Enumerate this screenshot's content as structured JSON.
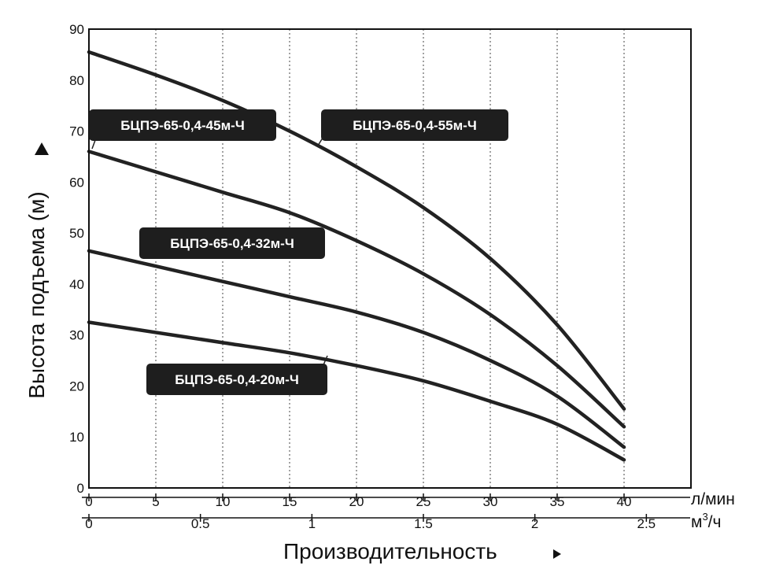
{
  "chart_data": {
    "type": "line",
    "ylabel": "Высота подъема (м)",
    "xlabel": "Производительность",
    "x_unit_primary": "л/мин",
    "x_unit_secondary_base": "м",
    "x_unit_secondary_sup": "3",
    "x_unit_secondary_tail": "/ч",
    "ylim": [
      0,
      90
    ],
    "xlim": [
      0,
      45
    ],
    "y_ticks": [
      0,
      10,
      20,
      30,
      40,
      50,
      60,
      70,
      80,
      90
    ],
    "x_ticks": [
      0,
      5,
      10,
      15,
      20,
      25,
      30,
      35,
      40
    ],
    "x2_ticks": [
      "0",
      "0.5",
      "1",
      "1.5",
      "2",
      "2.5"
    ],
    "x2_values": [
      0,
      0.5,
      1,
      1.5,
      2,
      2.5
    ],
    "grid": "vertical",
    "series": [
      {
        "name": "БЦПЭ-65-0,4-55м-Ч",
        "x": [
          0,
          5,
          10,
          15,
          20,
          25,
          30,
          35,
          40
        ],
        "y": [
          85.5,
          81,
          76,
          70,
          63,
          55,
          45,
          32,
          15.5
        ]
      },
      {
        "name": "БЦПЭ-65-0,4-45м-Ч",
        "x": [
          0,
          5,
          10,
          15,
          20,
          25,
          30,
          35,
          40
        ],
        "y": [
          66,
          62,
          58,
          54,
          48.5,
          42,
          34,
          24,
          12
        ]
      },
      {
        "name": "БЦПЭ-65-0,4-32м-Ч",
        "x": [
          0,
          5,
          10,
          15,
          20,
          25,
          30,
          35,
          40
        ],
        "y": [
          46.5,
          43.5,
          40.5,
          37.5,
          34.5,
          30.5,
          25,
          18,
          8
        ]
      },
      {
        "name": "БЦПЭ-65-0,4-20м-Ч",
        "x": [
          0,
          5,
          10,
          15,
          20,
          25,
          30,
          35,
          40
        ],
        "y": [
          32.5,
          30.5,
          28.5,
          26.5,
          24,
          21,
          17,
          12.5,
          5.5
        ]
      }
    ]
  }
}
